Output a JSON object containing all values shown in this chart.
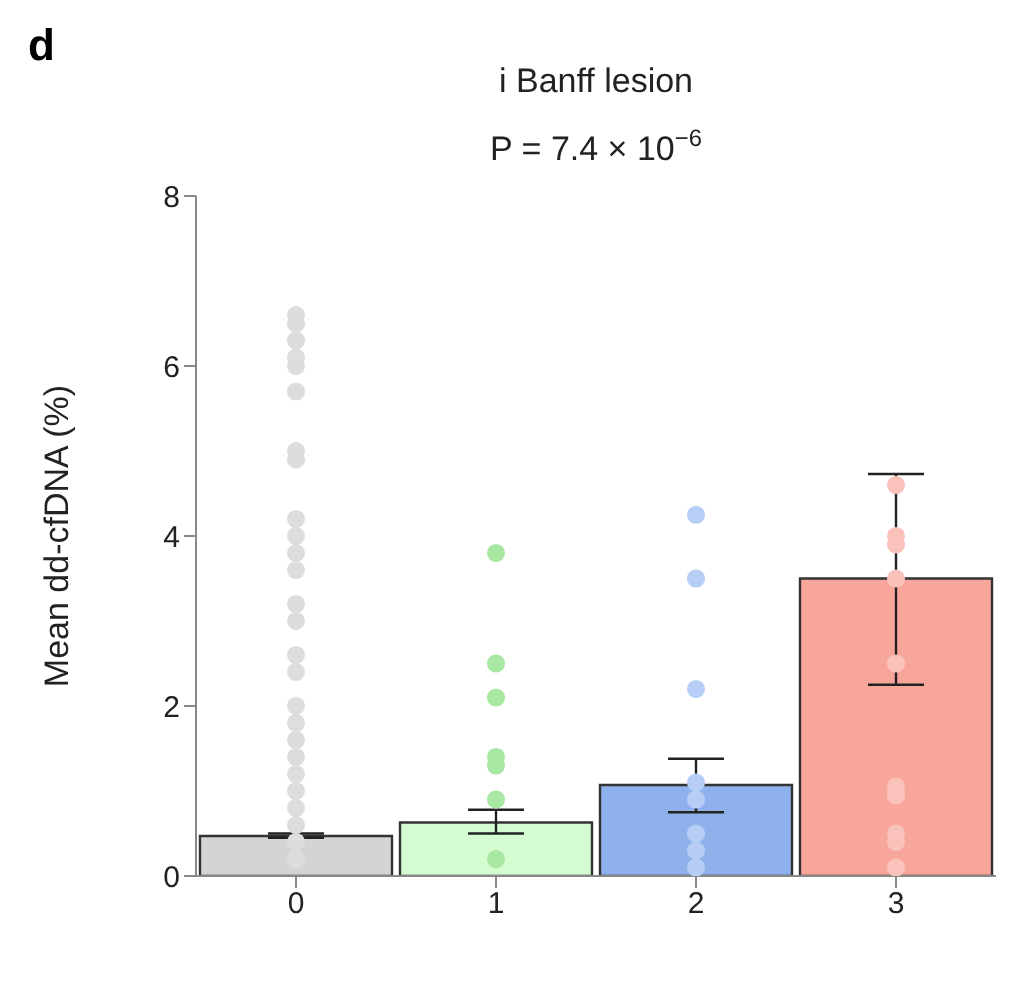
{
  "chart_data": {
    "type": "bar",
    "title": "i Banff lesion",
    "subtitle": "P = 7.4 × 10$^{−6}$",
    "annotations": [
      "d"
    ],
    "ylabel": "Mean dd-cfDNA (%)",
    "categories": [
      "0",
      "1",
      "2",
      "3"
    ],
    "series": [
      {
        "values": [
          0.47,
          0.63,
          1.07,
          3.5
        ],
        "colors": [
          "#cccccc",
          "#ccfcc8",
          "#7ba3e8",
          "#f7968a"
        ],
        "errors": [
          [
            0.45,
            0.5
          ],
          [
            0.5,
            0.78
          ],
          [
            0.75,
            1.38
          ],
          [
            2.25,
            4.73
          ]
        ]
      },
      {
        "type": "scatter",
        "x": [
          "0",
          "0",
          "0",
          "0",
          "0",
          "0",
          "0",
          "0",
          "0",
          "0",
          "0",
          "0",
          "0",
          "0",
          "0",
          "0",
          "0",
          "0",
          "0",
          "0",
          "0",
          "0",
          "0",
          "0",
          "0",
          "0",
          "1",
          "1",
          "1",
          "1",
          "1",
          "1",
          "1",
          "2",
          "2",
          "2",
          "2",
          "2",
          "2",
          "2",
          "2",
          "3",
          "3",
          "3",
          "3",
          "3",
          "3",
          "3",
          "3",
          "3",
          "3"
        ],
        "values": [
          6.6,
          6.5,
          6.3,
          6.1,
          6.0,
          5.7,
          5.0,
          4.9,
          4.2,
          4.0,
          3.8,
          3.6,
          3.2,
          3.0,
          2.6,
          2.4,
          2.0,
          1.8,
          1.6,
          1.4,
          1.2,
          1.0,
          0.8,
          0.6,
          0.4,
          0.2,
          3.8,
          2.5,
          2.1,
          1.4,
          1.3,
          0.9,
          0.2,
          4.25,
          3.5,
          2.2,
          1.1,
          0.9,
          0.5,
          0.3,
          0.1,
          4.6,
          4.0,
          3.9,
          3.5,
          2.5,
          1.05,
          0.95,
          0.5,
          0.4,
          0.1
        ],
        "colors": [
          "#dddddd",
          "#dddddd",
          "#dddddd",
          "#dddddd",
          "#dddddd",
          "#dddddd",
          "#dddddd",
          "#dddddd",
          "#dddddd",
          "#dddddd",
          "#dddddd",
          "#dddddd",
          "#dddddd",
          "#dddddd",
          "#dddddd",
          "#dddddd",
          "#dddddd",
          "#dddddd",
          "#dddddd",
          "#dddddd",
          "#dddddd",
          "#dddddd",
          "#dddddd",
          "#dddddd",
          "#dddddd",
          "#dddddd",
          "#a8e8a2",
          "#a8e8a2",
          "#a8e8a2",
          "#a8e8a2",
          "#a8e8a2",
          "#a8e8a2",
          "#a8e8a2",
          "#b8cdf5",
          "#b8cdf5",
          "#b8cdf5",
          "#b8cdf5",
          "#b8cdf5",
          "#b8cdf5",
          "#b8cdf5",
          "#b8cdf5",
          "#f9c3bc",
          "#f9c3bc",
          "#f9c3bc",
          "#f9c3bc",
          "#f9c3bc",
          "#f9c3bc",
          "#f9c3bc",
          "#f9c3bc",
          "#f9c3bc",
          "#f9c3bc"
        ]
      }
    ],
    "ylim": [
      0,
      8
    ],
    "yticks": [
      0,
      2,
      4,
      6,
      8
    ],
    "grid": false,
    "legend": false,
    "marker": "circle"
  }
}
